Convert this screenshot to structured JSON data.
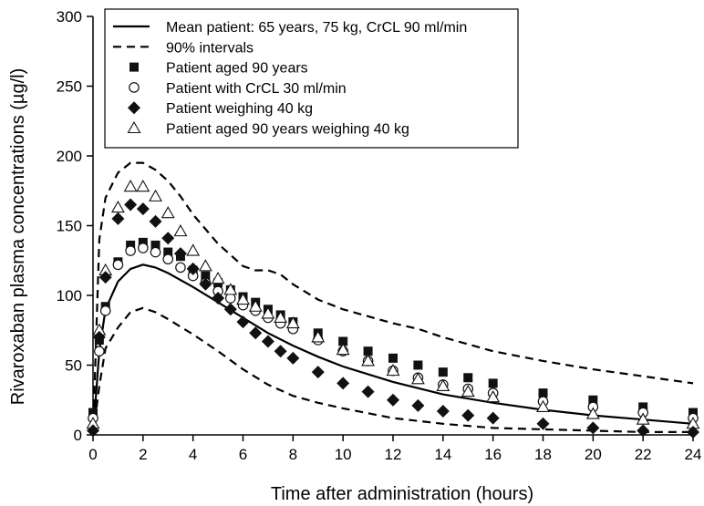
{
  "chart_data": {
    "type": "line",
    "title": "",
    "xlabel": "Time after administration (hours)",
    "ylabel": "Rivaroxaban plasma concentrations (µg/l)",
    "xlim": [
      0,
      24
    ],
    "ylim": [
      0,
      300
    ],
    "xticks": [
      0,
      2,
      4,
      6,
      8,
      10,
      12,
      14,
      16,
      18,
      20,
      22,
      24
    ],
    "yticks": [
      0,
      50,
      100,
      150,
      200,
      250,
      300
    ],
    "grid": false,
    "legend_position": "top-right",
    "series": [
      {
        "name": "Mean patient: 65 years, 75 kg, CrCL 90 ml/min",
        "style": "solid-line",
        "points": [
          [
            0,
            0
          ],
          [
            0.25,
            60
          ],
          [
            0.5,
            90
          ],
          [
            1,
            110
          ],
          [
            1.5,
            119
          ],
          [
            2,
            122
          ],
          [
            2.5,
            120
          ],
          [
            3,
            116
          ],
          [
            3.5,
            111
          ],
          [
            4,
            106
          ],
          [
            5,
            95
          ],
          [
            6,
            84
          ],
          [
            7,
            73
          ],
          [
            8,
            64
          ],
          [
            9,
            56
          ],
          [
            10,
            49
          ],
          [
            12,
            38
          ],
          [
            14,
            29
          ],
          [
            16,
            23
          ],
          [
            18,
            18
          ],
          [
            20,
            14
          ],
          [
            22,
            11
          ],
          [
            24,
            8
          ]
        ]
      },
      {
        "name": "90% intervals",
        "style": "dashed-line",
        "bands": [
          [
            [
              0,
              0
            ],
            [
              0.25,
              140
            ],
            [
              0.5,
              170
            ],
            [
              1,
              188
            ],
            [
              1.5,
              195
            ],
            [
              2,
              195
            ],
            [
              2.5,
              190
            ],
            [
              3,
              182
            ],
            [
              3.5,
              171
            ],
            [
              4,
              158
            ],
            [
              5,
              137
            ],
            [
              6,
              121
            ],
            [
              6.5,
              118
            ],
            [
              7,
              118
            ],
            [
              7.5,
              115
            ],
            [
              8,
              108
            ],
            [
              9,
              97
            ],
            [
              10,
              90
            ],
            [
              12,
              80
            ],
            [
              13,
              76
            ],
            [
              14,
              70
            ],
            [
              16,
              60
            ],
            [
              18,
              53
            ],
            [
              20,
              47
            ],
            [
              22,
              42
            ],
            [
              24,
              37
            ]
          ],
          [
            [
              0,
              0
            ],
            [
              0.25,
              35
            ],
            [
              0.5,
              62
            ],
            [
              1,
              77
            ],
            [
              1.5,
              88
            ],
            [
              2,
              91
            ],
            [
              2.5,
              88
            ],
            [
              3,
              83
            ],
            [
              4,
              72
            ],
            [
              5,
              60
            ],
            [
              6,
              47
            ],
            [
              7,
              36
            ],
            [
              8,
              28
            ],
            [
              9,
              23
            ],
            [
              10,
              19
            ],
            [
              12,
              12
            ],
            [
              14,
              8
            ],
            [
              16,
              5
            ],
            [
              18,
              4
            ],
            [
              20,
              3
            ],
            [
              22,
              2
            ],
            [
              24,
              2
            ]
          ]
        ]
      },
      {
        "name": "Patient aged 90 years",
        "marker": "filled-square",
        "points": [
          [
            0,
            16
          ],
          [
            0.25,
            68
          ],
          [
            0.5,
            92
          ],
          [
            1,
            124
          ],
          [
            1.5,
            136
          ],
          [
            2,
            138
          ],
          [
            2.5,
            136
          ],
          [
            3,
            131
          ],
          [
            3.5,
            128
          ],
          [
            4,
            118
          ],
          [
            4.5,
            114
          ],
          [
            5,
            109
          ],
          [
            5.5,
            104
          ],
          [
            6,
            99
          ],
          [
            6.5,
            95
          ],
          [
            7,
            90
          ],
          [
            7.5,
            86
          ],
          [
            8,
            81
          ],
          [
            9,
            73
          ],
          [
            10,
            67
          ],
          [
            11,
            60
          ],
          [
            12,
            55
          ],
          [
            13,
            50
          ],
          [
            14,
            45
          ],
          [
            15,
            41
          ],
          [
            16,
            37
          ],
          [
            18,
            30
          ],
          [
            20,
            25
          ],
          [
            22,
            20
          ],
          [
            24,
            16
          ]
        ]
      },
      {
        "name": "Patient with CrCL 30 ml/min",
        "marker": "open-circle",
        "points": [
          [
            0,
            12
          ],
          [
            0.25,
            60
          ],
          [
            0.5,
            89
          ],
          [
            1,
            122
          ],
          [
            1.5,
            132
          ],
          [
            2,
            134
          ],
          [
            2.5,
            131
          ],
          [
            3,
            126
          ],
          [
            3.5,
            120
          ],
          [
            4,
            114
          ],
          [
            4.5,
            109
          ],
          [
            5,
            103
          ],
          [
            5.5,
            98
          ],
          [
            6,
            93
          ],
          [
            6.5,
            89
          ],
          [
            7,
            84
          ],
          [
            7.5,
            80
          ],
          [
            8,
            76
          ],
          [
            9,
            68
          ],
          [
            10,
            60
          ],
          [
            11,
            53
          ],
          [
            12,
            46
          ],
          [
            13,
            41
          ],
          [
            14,
            36
          ],
          [
            15,
            33
          ],
          [
            16,
            30
          ],
          [
            18,
            24
          ],
          [
            20,
            20
          ],
          [
            22,
            16
          ],
          [
            24,
            12
          ]
        ]
      },
      {
        "name": "Patient weighing 40 kg",
        "marker": "filled-diamond",
        "points": [
          [
            0,
            3
          ],
          [
            0.25,
            70
          ],
          [
            0.5,
            113
          ],
          [
            1,
            155
          ],
          [
            1.5,
            165
          ],
          [
            2,
            162
          ],
          [
            2.5,
            153
          ],
          [
            3,
            141
          ],
          [
            3.5,
            130
          ],
          [
            4,
            119
          ],
          [
            4.5,
            108
          ],
          [
            5,
            98
          ],
          [
            5.5,
            90
          ],
          [
            6,
            81
          ],
          [
            6.5,
            73
          ],
          [
            7,
            67
          ],
          [
            7.5,
            60
          ],
          [
            8,
            55
          ],
          [
            9,
            45
          ],
          [
            10,
            37
          ],
          [
            11,
            31
          ],
          [
            12,
            25
          ],
          [
            13,
            21
          ],
          [
            14,
            17
          ],
          [
            15,
            14
          ],
          [
            16,
            12
          ],
          [
            18,
            8
          ],
          [
            20,
            5
          ],
          [
            22,
            3
          ],
          [
            24,
            2
          ]
        ]
      },
      {
        "name": "Patient aged 90 years weighing 40 kg",
        "marker": "open-triangle",
        "points": [
          [
            0,
            8
          ],
          [
            0.25,
            75
          ],
          [
            0.5,
            118
          ],
          [
            1,
            163
          ],
          [
            1.5,
            178
          ],
          [
            2,
            178
          ],
          [
            2.5,
            171
          ],
          [
            3,
            159
          ],
          [
            3.5,
            146
          ],
          [
            4,
            132
          ],
          [
            4.5,
            121
          ],
          [
            5,
            112
          ],
          [
            5.5,
            104
          ],
          [
            6,
            97
          ],
          [
            6.5,
            92
          ],
          [
            7,
            87
          ],
          [
            7.5,
            84
          ],
          [
            8,
            80
          ],
          [
            9,
            70
          ],
          [
            10,
            61
          ],
          [
            11,
            53
          ],
          [
            12,
            46
          ],
          [
            13,
            40
          ],
          [
            14,
            35
          ],
          [
            15,
            31
          ],
          [
            16,
            27
          ],
          [
            18,
            20
          ],
          [
            20,
            15
          ],
          [
            22,
            11
          ],
          [
            24,
            8
          ]
        ]
      }
    ]
  }
}
